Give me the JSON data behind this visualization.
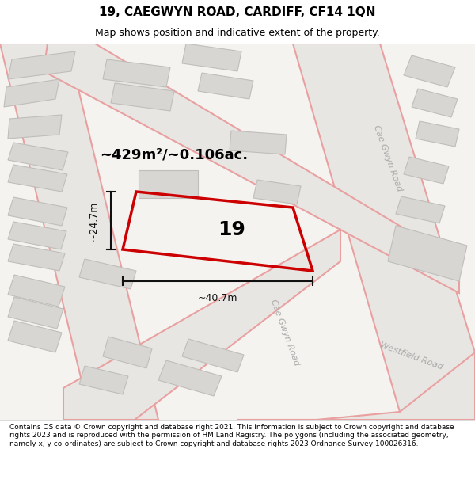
{
  "title": "19, CAEGWYN ROAD, CARDIFF, CF14 1QN",
  "subtitle": "Map shows position and indicative extent of the property.",
  "footer": "Contains OS data © Crown copyright and database right 2021. This information is subject to Crown copyright and database rights 2023 and is reproduced with the permission of HM Land Registry. The polygons (including the associated geometry, namely x, y co-ordinates) are subject to Crown copyright and database rights 2023 Ordnance Survey 100026316.",
  "area_label": "~429m²/~0.106ac.",
  "width_label": "~40.7m",
  "height_label": "~24.7m",
  "property_number": "19",
  "bg_color": "#f0eeec",
  "map_bg": "#f5f3f0",
  "road_fill": "#e8e6e3",
  "road_stroke": "#e8a0a0",
  "building_fill": "#d8d6d3",
  "building_stroke": "#c0bebb",
  "property_stroke": "#cc0000",
  "property_fill": "none",
  "dimension_color": "#111111"
}
